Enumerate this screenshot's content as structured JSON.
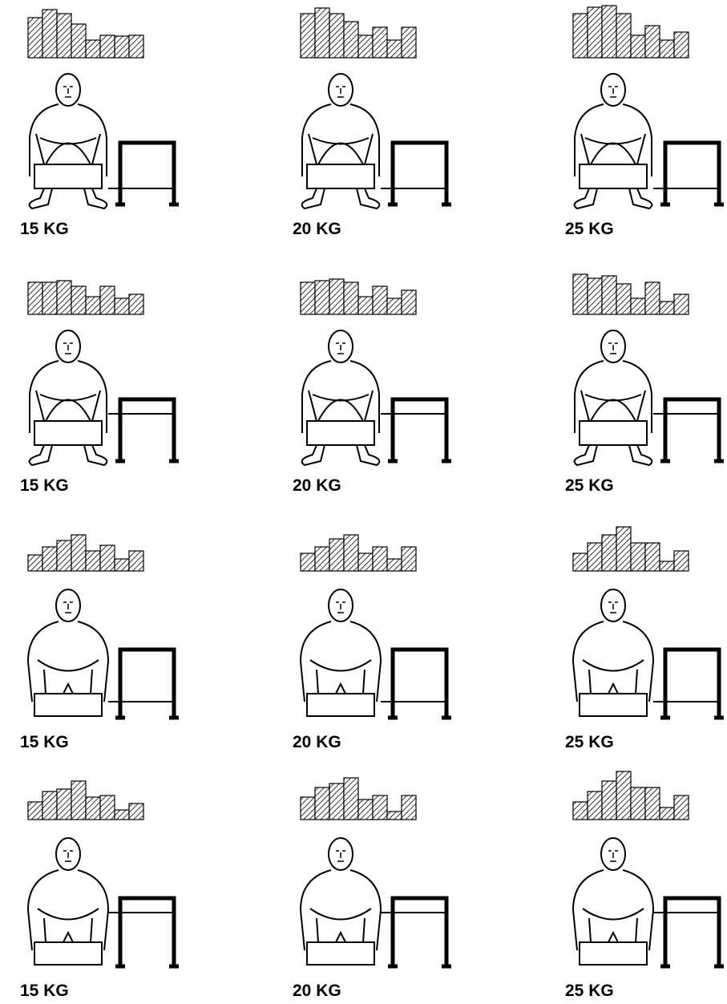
{
  "panels": [
    {
      "label": "15 KG",
      "bars": [
        50,
        60,
        55,
        42,
        22,
        28,
        27,
        28
      ]
    },
    {
      "label": "20 KG",
      "bars": [
        55,
        62,
        55,
        45,
        28,
        38,
        22,
        38
      ]
    },
    {
      "label": "25 KG",
      "bars": [
        55,
        63,
        65,
        55,
        28,
        40,
        22,
        32
      ]
    },
    {
      "label": "15 KG",
      "bars": [
        40,
        40,
        42,
        35,
        22,
        35,
        20,
        25
      ]
    },
    {
      "label": "20 KG",
      "bars": [
        40,
        42,
        44,
        40,
        22,
        35,
        20,
        30
      ]
    },
    {
      "label": "25 KG",
      "bars": [
        50,
        45,
        48,
        38,
        20,
        40,
        16,
        25
      ]
    },
    {
      "label": "15 KG",
      "bars": [
        20,
        30,
        38,
        45,
        25,
        32,
        15,
        25
      ]
    },
    {
      "label": "20 KG",
      "bars": [
        22,
        30,
        40,
        45,
        22,
        30,
        15,
        30
      ]
    },
    {
      "label": "25 KG",
      "bars": [
        22,
        35,
        45,
        55,
        35,
        35,
        12,
        25
      ]
    },
    {
      "label": "15 KG",
      "bars": [
        22,
        35,
        38,
        48,
        28,
        30,
        12,
        20
      ]
    },
    {
      "label": "20 KG",
      "bars": [
        28,
        40,
        45,
        52,
        25,
        30,
        10,
        30
      ]
    },
    {
      "label": "25 KG",
      "bars": [
        22,
        35,
        48,
        60,
        40,
        40,
        15,
        30
      ]
    }
  ]
}
